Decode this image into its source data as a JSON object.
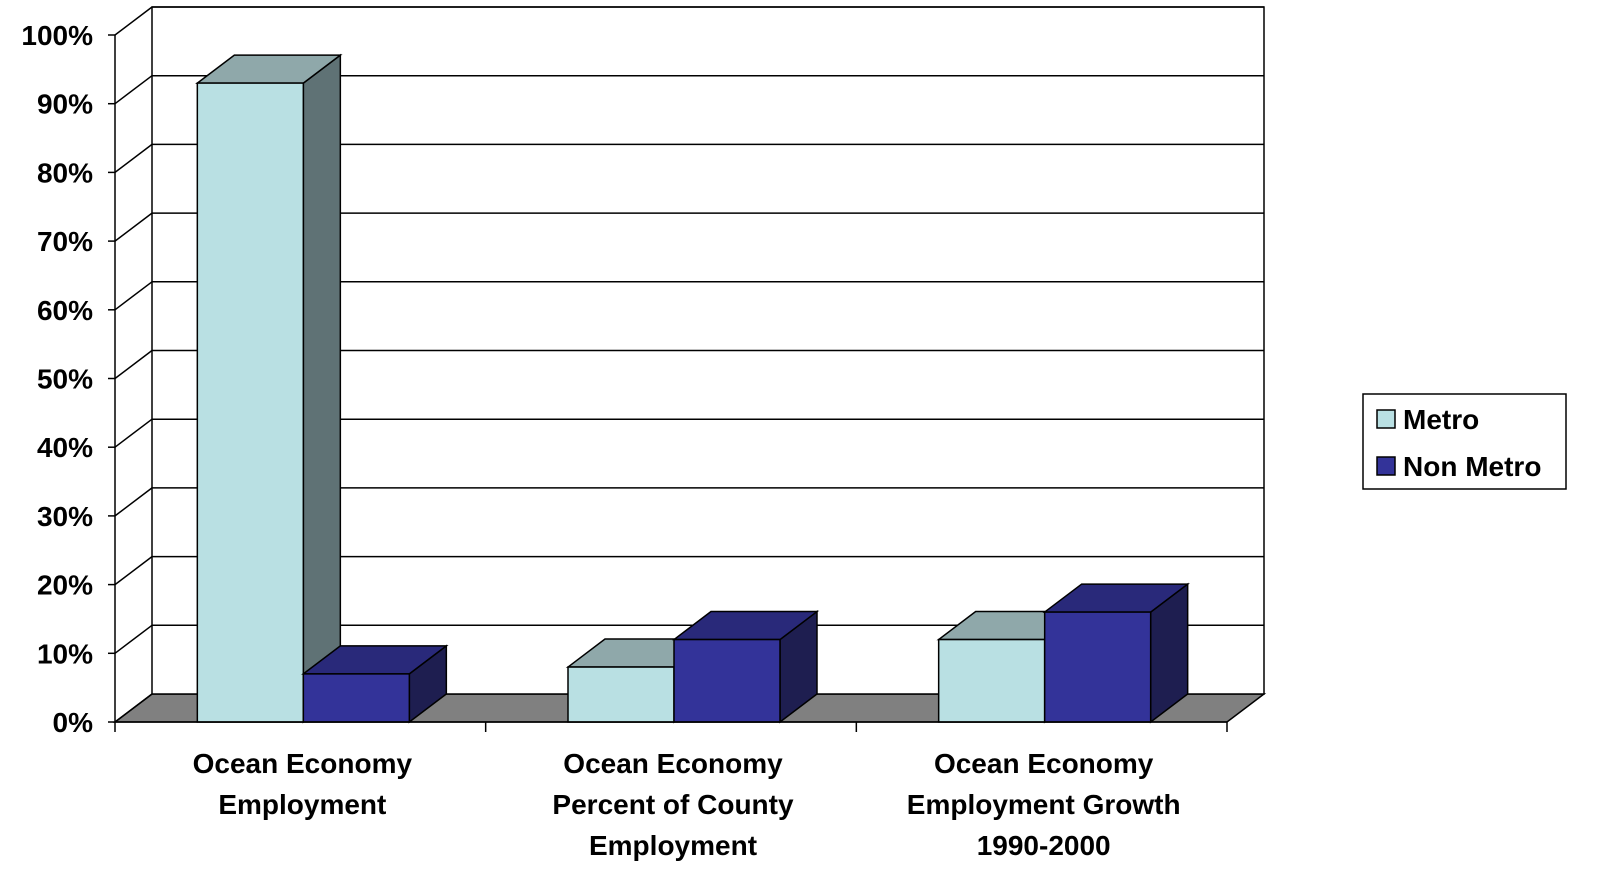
{
  "chart_data": {
    "type": "bar",
    "three_d": true,
    "categories": [
      [
        "Ocean Economy",
        "Employment"
      ],
      [
        "Ocean Economy",
        "Percent of County",
        "Employment"
      ],
      [
        "Ocean Economy",
        "Employment Growth",
        "1990-2000"
      ]
    ],
    "series": [
      {
        "name": "Metro",
        "values": [
          93,
          8,
          12
        ],
        "color": "#b9e0e3",
        "side_color": "#5f7275",
        "top_color": "#8fa8aa"
      },
      {
        "name": "Non Metro",
        "values": [
          7,
          12,
          16
        ],
        "color": "#333399",
        "side_color": "#1e1e50",
        "top_color": "#29297a"
      }
    ],
    "ylim": [
      0,
      100
    ],
    "yticks": [
      "0%",
      "10%",
      "20%",
      "30%",
      "40%",
      "50%",
      "60%",
      "70%",
      "80%",
      "90%",
      "100%"
    ],
    "grid": true,
    "floor_color": "#808080",
    "legend_position": "right"
  }
}
